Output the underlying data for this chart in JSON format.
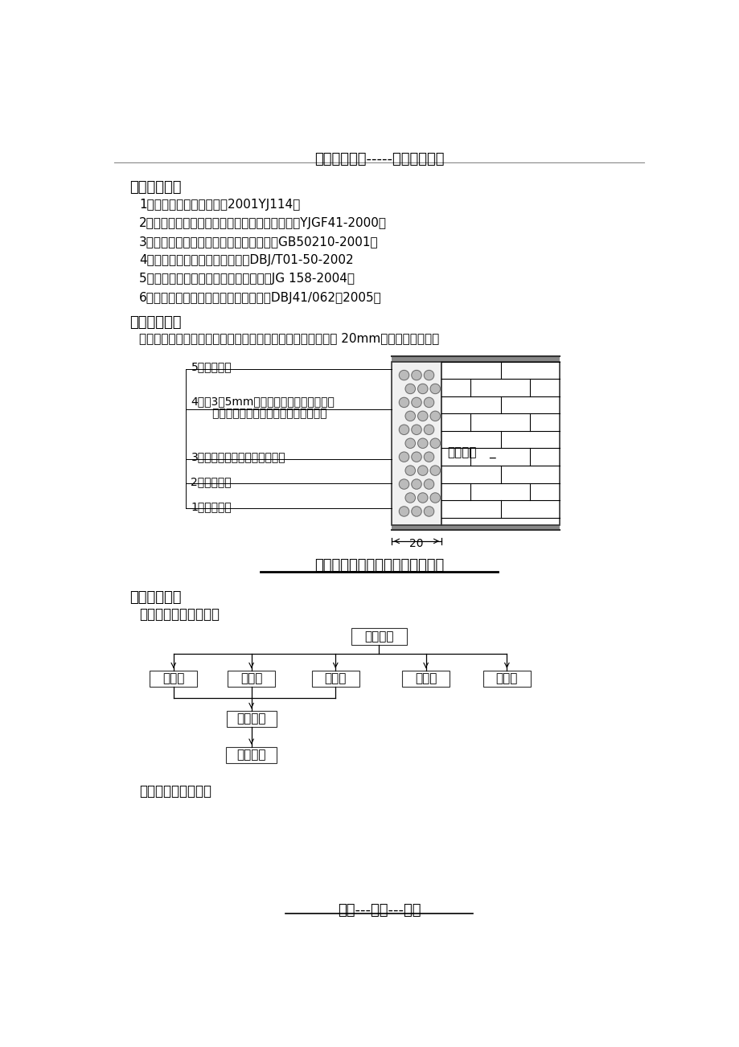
{
  "title_top": "精选优质文档-----倾情为你奉上",
  "title_bottom": "专心---专注---专业",
  "section1_title": "一、编制依据",
  "section1_items": [
    "1、《建筑产品优选集》（2001YJ114）",
    "2、《胶粉聚苯颗粒保温材料外墙外保温工法》（YJGF41-2000）",
    "3、《建筑装饰装修工程质量验收规范》（GB50210-2001）",
    "4、《外墙外保温施工技术规程》DBJ/T01-50-2002",
    "5、《胶粉聚苯颗粒外墙外保温系统》（JG 158-2004）",
    "6、《河南省居住建筑节能设计标准》（DBJ41/062－2005）"
  ],
  "section2_title": "二、工程概况",
  "section2_intro": "本工程外墙外保温采用胶粉聚苯颗粒涂料饰面体系，保温厚度 20mm，结构简图如下：",
  "diagram_label5": "5、面层施工",
  "diagram_label4a": "4、抹3～5mm抗裂砂浆，中间压入一层耐",
  "diagram_label4b": "   碱网格布，抗裂砂浆以盖住网格布为准",
  "diagram_label3": "3、抹胶粉聚苯颗粒，一遍成活",
  "diagram_label2": "2、界面处理",
  "diagram_label1": "1、基层墙体",
  "diagram_caption": "胶粉聚苯颗粒涂料饰面体系截面图",
  "wall_label": "外墙墙体",
  "dimension_label": "20",
  "section3_title": "三、施工部署",
  "section3_sub1": "（一）、项目组织机构",
  "org_top": "项目经理",
  "org_level2": [
    "技术员",
    "质检员",
    "安全员",
    "资料员",
    "预算员"
  ],
  "org_level3": "项目工长",
  "org_level4": "作业人员",
  "section3_sub2": "（二）、劳动力组织",
  "bg_color": "#ffffff"
}
